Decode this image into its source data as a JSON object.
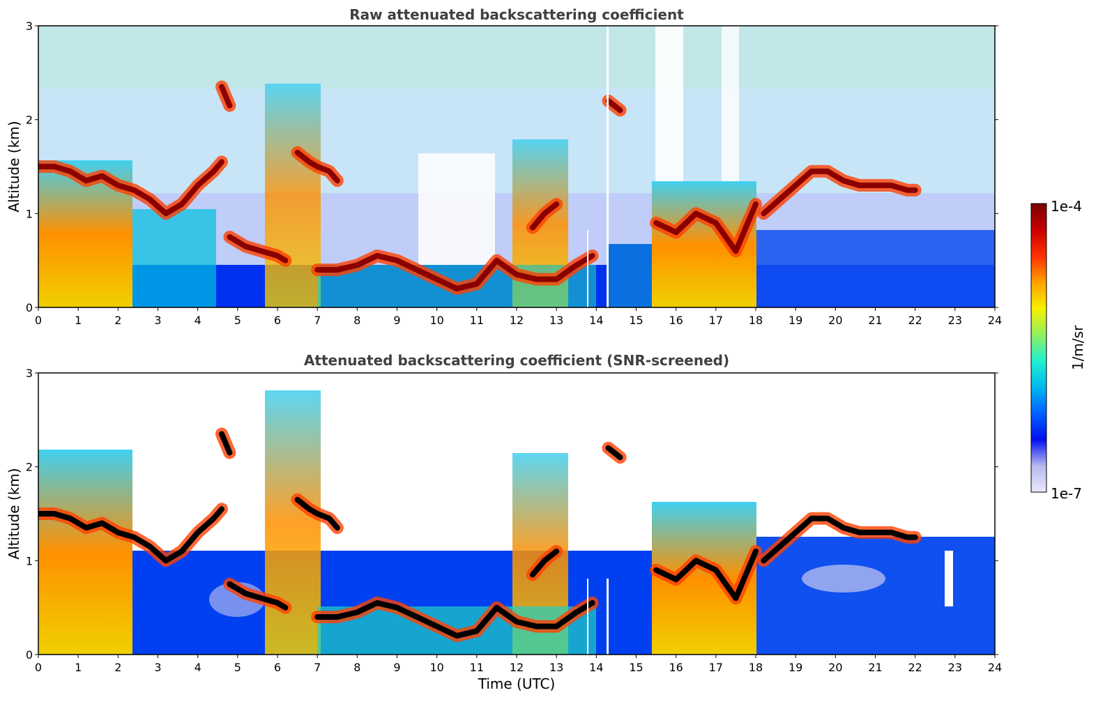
{
  "chart_data": [
    {
      "type": "heatmap",
      "title": "Raw attenuated backscattering coefficient",
      "xlabel": "",
      "ylabel": "Altitude (km)",
      "xlim": [
        0,
        24
      ],
      "ylim": [
        0,
        3
      ],
      "xticks": [
        0,
        1,
        2,
        3,
        4,
        5,
        6,
        7,
        8,
        9,
        10,
        11,
        12,
        13,
        14,
        15,
        16,
        17,
        18,
        19,
        20,
        21,
        22,
        23,
        24
      ],
      "yticks": [
        0,
        1,
        2,
        3
      ],
      "layers": [
        {
          "feature": "cloud",
          "x": [
            0,
            0.4,
            0.8,
            1.2,
            1.6,
            2.0,
            2.4,
            2.8,
            3.2,
            3.6,
            4.0,
            4.4,
            4.6
          ],
          "y": [
            1.5,
            1.5,
            1.45,
            1.35,
            1.4,
            1.3,
            1.25,
            1.15,
            1.0,
            1.1,
            1.3,
            1.45,
            1.55
          ]
        },
        {
          "feature": "cloud",
          "x": [
            6.5,
            6.8,
            7.0,
            7.3,
            7.5
          ],
          "y": [
            1.65,
            1.55,
            1.5,
            1.45,
            1.35
          ]
        },
        {
          "feature": "cloud",
          "x": [
            4.8,
            5.2,
            5.6,
            6.0,
            6.2
          ],
          "y": [
            0.75,
            0.65,
            0.6,
            0.55,
            0.5
          ]
        },
        {
          "feature": "boundary-layer top",
          "x": [
            7.0,
            7.5,
            8.0,
            8.5,
            9.0,
            9.5,
            10.0,
            10.5,
            11.0,
            11.5,
            12.0,
            12.5,
            13.0,
            13.5,
            13.9
          ],
          "y": [
            0.4,
            0.4,
            0.45,
            0.55,
            0.5,
            0.4,
            0.3,
            0.2,
            0.25,
            0.5,
            0.35,
            0.3,
            0.3,
            0.45,
            0.55
          ]
        },
        {
          "feature": "cloud",
          "x": [
            12.4,
            12.7,
            13.0
          ],
          "y": [
            0.85,
            1.0,
            1.1
          ]
        },
        {
          "feature": "cloud",
          "x": [
            15.5,
            16.0,
            16.5,
            17.0,
            17.5,
            18.0
          ],
          "y": [
            0.9,
            0.8,
            1.0,
            0.9,
            0.6,
            1.1
          ]
        },
        {
          "feature": "cloud",
          "x": [
            18.2,
            18.6,
            19.0,
            19.4,
            19.8,
            20.2,
            20.6,
            21.0,
            21.4,
            21.8,
            22.0
          ],
          "y": [
            1.0,
            1.15,
            1.3,
            1.45,
            1.45,
            1.35,
            1.3,
            1.3,
            1.3,
            1.25,
            1.25
          ]
        },
        {
          "feature": "cloud",
          "x": [
            4.6,
            4.8
          ],
          "y": [
            2.35,
            2.15
          ]
        },
        {
          "feature": "cloud",
          "x": [
            14.3,
            14.6
          ],
          "y": [
            2.2,
            2.1
          ]
        }
      ]
    },
    {
      "type": "heatmap",
      "title": "Attenuated backscattering coefficient (SNR-screened)",
      "xlabel": "Time (UTC)",
      "ylabel": "Altitude (km)",
      "xlim": [
        0,
        24
      ],
      "ylim": [
        0,
        3
      ],
      "xticks": [
        0,
        1,
        2,
        3,
        4,
        5,
        6,
        7,
        8,
        9,
        10,
        11,
        12,
        13,
        14,
        15,
        16,
        17,
        18,
        19,
        20,
        21,
        22,
        23,
        24
      ],
      "yticks": [
        0,
        1,
        2,
        3
      ]
    }
  ],
  "colorbar": {
    "label": "1/m/sr",
    "max_label": "1e-4",
    "min_label": "1e-7",
    "scale": "log",
    "range": [
      1e-07,
      0.0001
    ],
    "colormap": [
      "#e8e8f8",
      "#b8b8f0",
      "#0010f0",
      "#0060ff",
      "#00b8f0",
      "#20f0d0",
      "#90f060",
      "#f8f000",
      "#ffa000",
      "#ff3000",
      "#c80000",
      "#780000"
    ]
  }
}
